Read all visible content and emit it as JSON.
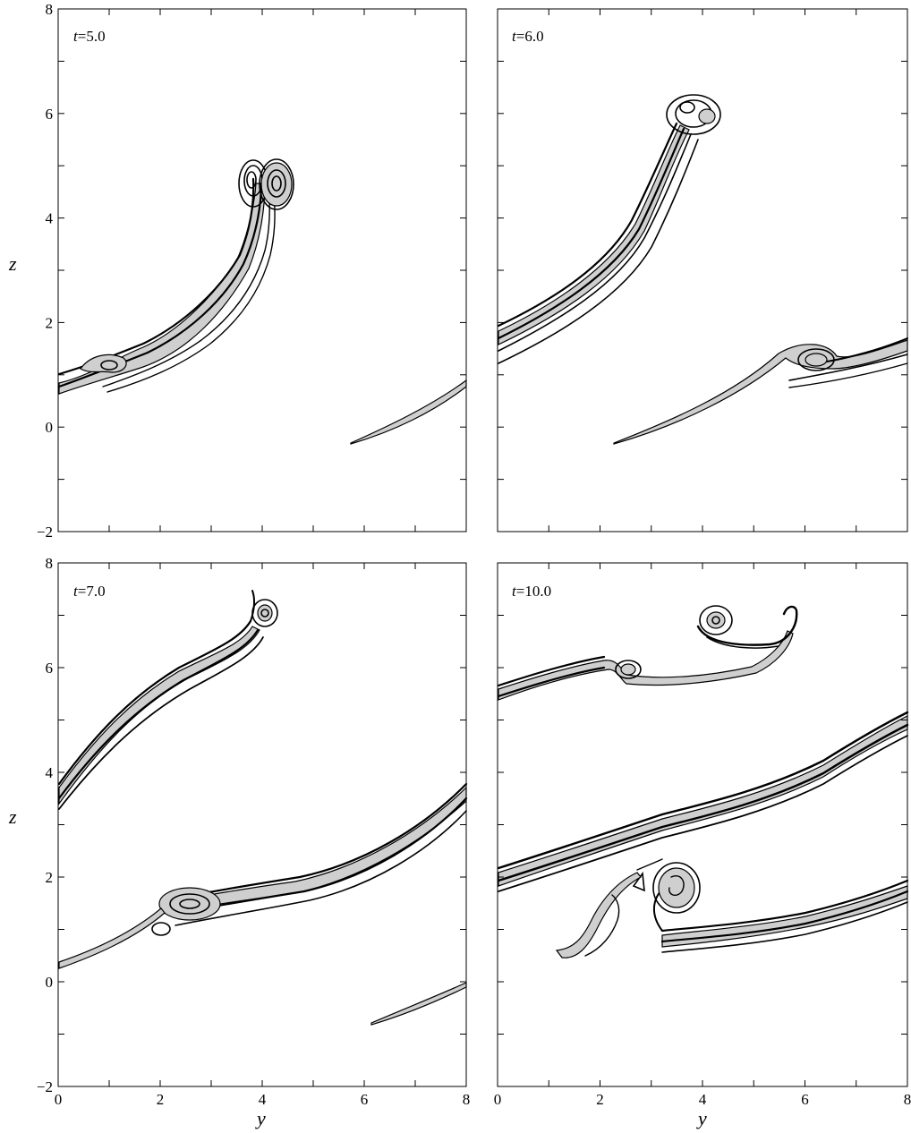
{
  "figure": {
    "xlabel": "y",
    "ylabel": "z",
    "xticks": [
      "0",
      "2",
      "4",
      "6",
      "8"
    ],
    "yticks": [
      "−2",
      "0",
      "2",
      "4",
      "6",
      "8"
    ],
    "xlim": [
      0,
      8
    ],
    "ylim": [
      -2,
      8
    ],
    "panels": [
      {
        "t_sym": "t",
        "t_val": "=5.0"
      },
      {
        "t_sym": "t",
        "t_val": "=6.0"
      },
      {
        "t_sym": "t",
        "t_val": "=7.0"
      },
      {
        "t_sym": "t",
        "t_val": "=10.0"
      }
    ],
    "colors": {
      "contour": "#000000",
      "shading": "#cfcfcf"
    }
  }
}
